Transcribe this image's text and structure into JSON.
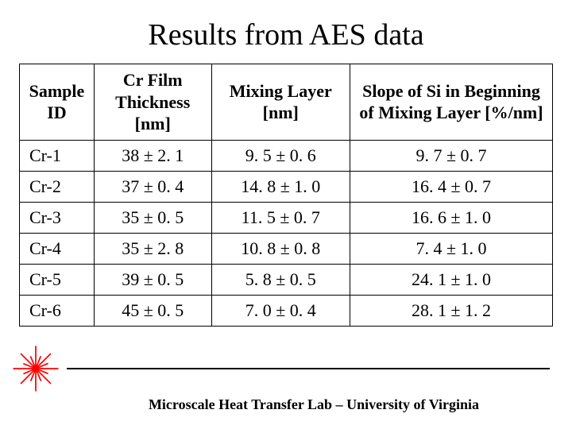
{
  "title": "Results from AES data",
  "table": {
    "columns": [
      "Sample ID",
      "Cr Film Thickness [nm]",
      "Mixing Layer [nm]",
      "Slope of Si in Beginning of Mixing Layer [%/nm]"
    ],
    "rows": [
      {
        "id": "Cr-1",
        "thickness": "38 ± 2. 1",
        "mixing": "9. 5 ± 0. 6",
        "slope": "9. 7 ± 0. 7"
      },
      {
        "id": "Cr-2",
        "thickness": "37 ± 0. 4",
        "mixing": "14. 8 ± 1. 0",
        "slope": "16. 4 ± 0. 7"
      },
      {
        "id": "Cr-3",
        "thickness": "35 ± 0. 5",
        "mixing": "11. 5 ± 0. 7",
        "slope": "16. 6 ± 1. 0"
      },
      {
        "id": "Cr-4",
        "thickness": "35 ± 2. 8",
        "mixing": "10. 8 ± 0. 8",
        "slope": "7. 4 ± 1. 0"
      },
      {
        "id": "Cr-5",
        "thickness": "39 ± 0. 5",
        "mixing": "5. 8 ± 0. 5",
        "slope": "24. 1 ± 1. 0"
      },
      {
        "id": "Cr-6",
        "thickness": "45 ± 0. 5",
        "mixing": "7. 0 ± 0. 4",
        "slope": "28. 1 ± 1. 2"
      }
    ],
    "header_fontsize": 22,
    "cell_fontsize": 22,
    "border_color": "#000000"
  },
  "footer": {
    "text": "Microscale Heat Transfer Lab – University of Virginia",
    "icon_color": "#ff0000",
    "divider_color": "#000000"
  },
  "colors": {
    "background": "#ffffff",
    "text": "#000000"
  }
}
